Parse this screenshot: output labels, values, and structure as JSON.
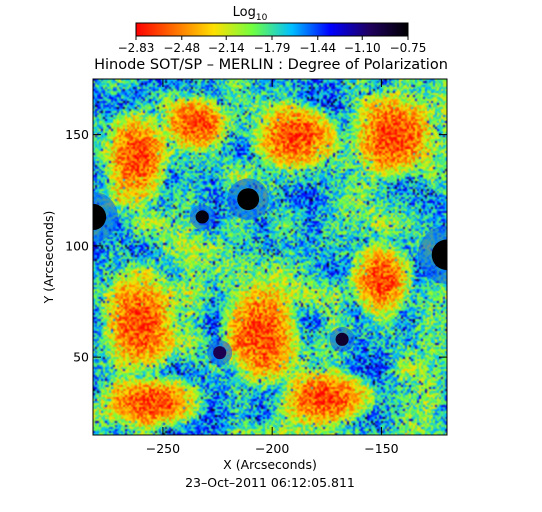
{
  "chart_data": {
    "type": "heatmap",
    "title": "Hinode SOT/SP – MERLIN : Degree of Polarization",
    "colorbar": {
      "label_main": "Log",
      "label_sub": "10",
      "ticks": [
        -2.83,
        -2.48,
        -2.14,
        -1.79,
        -1.44,
        -1.1,
        -0.75
      ],
      "tick_labels": [
        "−2.83",
        "−2.48",
        "−2.14",
        "−1.79",
        "−1.44",
        "−1.10",
        "−0.75"
      ],
      "range": [
        -2.83,
        -0.75
      ],
      "colormap": [
        "#ff0000",
        "#ff7000",
        "#ffe000",
        "#70ff40",
        "#00c0ff",
        "#0000ff",
        "#200060",
        "#000000"
      ]
    },
    "xlabel": "X (Arcseconds)",
    "ylabel": "Y (Arcseconds)",
    "xlim": [
      -282,
      -120
    ],
    "ylim": [
      15,
      175
    ],
    "xticks": [
      -250,
      -200,
      -150
    ],
    "xtick_labels": [
      "−250",
      "−200",
      "−150"
    ],
    "yticks": [
      50,
      100,
      150
    ],
    "ytick_labels": [
      "50",
      "100",
      "150"
    ],
    "footer": "23–Oct–2011 06:12:05.811",
    "features": {
      "high_polarization_regions": [
        {
          "x": -211,
          "y": 121,
          "r": 5,
          "value": -0.75
        },
        {
          "x": -282,
          "y": 113,
          "r": 6,
          "value": -0.75
        },
        {
          "x": -120,
          "y": 96,
          "r": 7,
          "value": -0.75
        },
        {
          "x": -232,
          "y": 113,
          "r": 3,
          "value": -0.8
        },
        {
          "x": -168,
          "y": 58,
          "r": 3,
          "value": -0.9
        },
        {
          "x": -224,
          "y": 52,
          "r": 3,
          "value": -1.0
        }
      ],
      "quiet_regions": [
        {
          "x": -262,
          "y": 140,
          "w": 30,
          "h": 45
        },
        {
          "x": -235,
          "y": 155,
          "w": 30,
          "h": 25
        },
        {
          "x": -190,
          "y": 150,
          "w": 40,
          "h": 30
        },
        {
          "x": -145,
          "y": 150,
          "w": 40,
          "h": 40
        },
        {
          "x": -260,
          "y": 65,
          "w": 35,
          "h": 50
        },
        {
          "x": -205,
          "y": 60,
          "w": 35,
          "h": 45
        },
        {
          "x": -150,
          "y": 85,
          "w": 30,
          "h": 35
        },
        {
          "x": -255,
          "y": 30,
          "w": 50,
          "h": 25
        },
        {
          "x": -175,
          "y": 32,
          "w": 45,
          "h": 25
        }
      ]
    }
  }
}
